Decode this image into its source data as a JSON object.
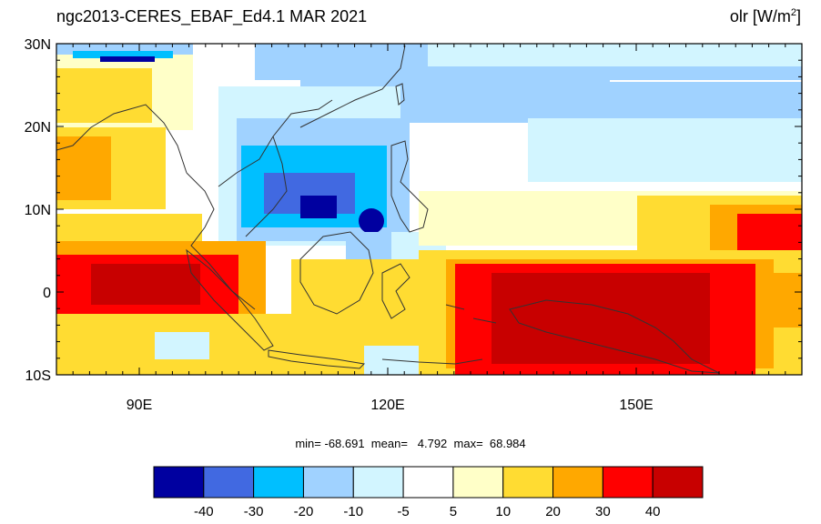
{
  "title": {
    "left": "ngc2013-CERES_EBAF_Ed4.1  MAR 2021",
    "right_prefix": "olr [W/m",
    "right_sup": "2",
    "right_suffix": "]"
  },
  "axes": {
    "lon_range": [
      80,
      170
    ],
    "lat_range": [
      -10,
      30
    ],
    "y_ticks": [
      {
        "lat": 30,
        "label": "30N"
      },
      {
        "lat": 20,
        "label": "20N"
      },
      {
        "lat": 10,
        "label": "10N"
      },
      {
        "lat": 0,
        "label": "0"
      },
      {
        "lat": -10,
        "label": "10S"
      }
    ],
    "x_ticks": [
      {
        "lon": 90,
        "label": "90E"
      },
      {
        "lon": 120,
        "label": "120E"
      },
      {
        "lon": 150,
        "label": "150E"
      }
    ]
  },
  "stats": {
    "text": "min= -68.691  mean=   4.792  max=  68.984"
  },
  "colorbar": {
    "colors": [
      "#0000a0",
      "#4169e1",
      "#00bfff",
      "#a0d2ff",
      "#d2f5ff",
      "#ffffff",
      "#ffffc8",
      "#ffdc32",
      "#ffa800",
      "#ff0000",
      "#c80000"
    ],
    "labels": [
      "-40",
      "-30",
      "-20",
      "-10",
      "-5",
      "5",
      "10",
      "20",
      "30",
      "40"
    ]
  },
  "colors": {
    "land_outline": "#333333",
    "frame": "#000000"
  }
}
